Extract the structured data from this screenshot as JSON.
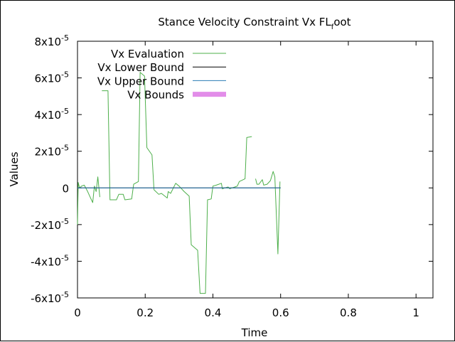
{
  "chart_data": {
    "type": "line",
    "title": "Stance Velocity Constraint Vx FL",
    "title_sub": "f",
    "title_suffix": "oot",
    "xlabel": "Time",
    "ylabel": "Values",
    "xlim": [
      0,
      1.05
    ],
    "ylim": [
      -6e-05,
      8e-05
    ],
    "x_ticks": [
      {
        "value": 0,
        "label": "0"
      },
      {
        "value": 0.2,
        "label": "0.2"
      },
      {
        "value": 0.4,
        "label": "0.4"
      },
      {
        "value": 0.6,
        "label": "0.6"
      },
      {
        "value": 0.8,
        "label": "0.8"
      },
      {
        "value": 1,
        "label": "1"
      }
    ],
    "y_ticks": [
      {
        "value": 8e-05,
        "mant": "8x10",
        "exp": "-5"
      },
      {
        "value": 6e-05,
        "mant": "6x10",
        "exp": "-5"
      },
      {
        "value": 4e-05,
        "mant": "4x10",
        "exp": "-5"
      },
      {
        "value": 2e-05,
        "mant": "2x10",
        "exp": "-5"
      },
      {
        "value": 0,
        "mant": "0",
        "exp": ""
      },
      {
        "value": -2e-05,
        "mant": "-2x10",
        "exp": "-5"
      },
      {
        "value": -4e-05,
        "mant": "-4x10",
        "exp": "-5"
      },
      {
        "value": -6e-05,
        "mant": "-6x10",
        "exp": "-5"
      }
    ],
    "grid": false,
    "legend_position": "top-left",
    "series": [
      {
        "name": "Vx Evaluation",
        "color": "#4daf4a",
        "width": 1,
        "segments": [
          [
            [
              0.0,
              -2e-05
            ],
            [
              0.002,
              3e-06
            ],
            [
              0.006,
              0.0
            ],
            [
              0.012,
              1e-06
            ],
            [
              0.02,
              1.5e-06
            ],
            [
              0.03,
              -2e-06
            ],
            [
              0.04,
              -6e-06
            ],
            [
              0.045,
              -8e-06
            ],
            [
              0.05,
              1e-06
            ],
            [
              0.055,
              -2e-06
            ],
            [
              0.06,
              6e-06
            ],
            [
              0.066,
              -5e-06
            ]
          ],
          [
            [
              0.072,
              5.3e-05
            ],
            [
              0.09,
              5.3e-05
            ],
            [
              0.096,
              -6.5e-06
            ],
            [
              0.115,
              -6.5e-06
            ],
            [
              0.122,
              -3.5e-06
            ],
            [
              0.135,
              -3.5e-06
            ],
            [
              0.14,
              -6.5e-06
            ],
            [
              0.16,
              -6e-06
            ],
            [
              0.166,
              2e-06
            ],
            [
              0.18,
              3.5e-06
            ],
            [
              0.185,
              6.3e-05
            ],
            [
              0.198,
              6.1e-05
            ],
            [
              0.205,
              2.2e-05
            ],
            [
              0.22,
              1.8e-05
            ],
            [
              0.226,
              -1e-06
            ],
            [
              0.24,
              -3.5e-06
            ],
            [
              0.248,
              -3e-06
            ],
            [
              0.265,
              -5.5e-06
            ],
            [
              0.268,
              -2e-06
            ],
            [
              0.275,
              -3e-06
            ],
            [
              0.29,
              2.5e-06
            ],
            [
              0.3,
              1e-06
            ],
            [
              0.315,
              -2e-06
            ],
            [
              0.33,
              -4.5e-06
            ],
            [
              0.336,
              -3.1e-05
            ],
            [
              0.355,
              -3.4e-05
            ],
            [
              0.362,
              -5.75e-05
            ],
            [
              0.378,
              -5.75e-05
            ],
            [
              0.384,
              -6.5e-06
            ],
            [
              0.395,
              -6e-06
            ],
            [
              0.4,
              1e-06
            ],
            [
              0.41,
              1.5e-06
            ],
            [
              0.425,
              2.5e-06
            ],
            [
              0.428,
              -5e-07
            ],
            [
              0.435,
              0.0
            ],
            [
              0.445,
              5e-07
            ],
            [
              0.45,
              -5e-07
            ],
            [
              0.456,
              0.0
            ],
            [
              0.465,
              5e-07
            ],
            [
              0.472,
              1e-06
            ],
            [
              0.478,
              3.5e-06
            ],
            [
              0.495,
              5e-06
            ],
            [
              0.5,
              2.75e-05
            ],
            [
              0.515,
              2.8e-05
            ]
          ],
          [
            [
              0.526,
              5e-06
            ],
            [
              0.53,
              2e-06
            ],
            [
              0.536,
              2e-06
            ],
            [
              0.546,
              4.5e-06
            ],
            [
              0.55,
              1.5e-06
            ],
            [
              0.56,
              2e-06
            ],
            [
              0.57,
              4e-06
            ],
            [
              0.578,
              9e-06
            ],
            [
              0.583,
              6e-06
            ],
            [
              0.592,
              -3.6e-05
            ],
            [
              0.598,
              3.5e-06
            ]
          ]
        ]
      },
      {
        "name": "Vx Lower Bound",
        "color": "#000000",
        "width": 1,
        "segments": [
          [
            [
              0.0,
              0.0
            ],
            [
              0.6,
              0.0
            ]
          ]
        ]
      },
      {
        "name": "Vx Upper Bound",
        "color": "#2a7bb5",
        "width": 1,
        "segments": [
          [
            [
              0.0,
              0.0
            ],
            [
              0.6,
              0.0
            ]
          ]
        ]
      },
      {
        "name": "Vx Bounds",
        "color": "#e28de9",
        "width": 7,
        "segments": []
      }
    ]
  }
}
